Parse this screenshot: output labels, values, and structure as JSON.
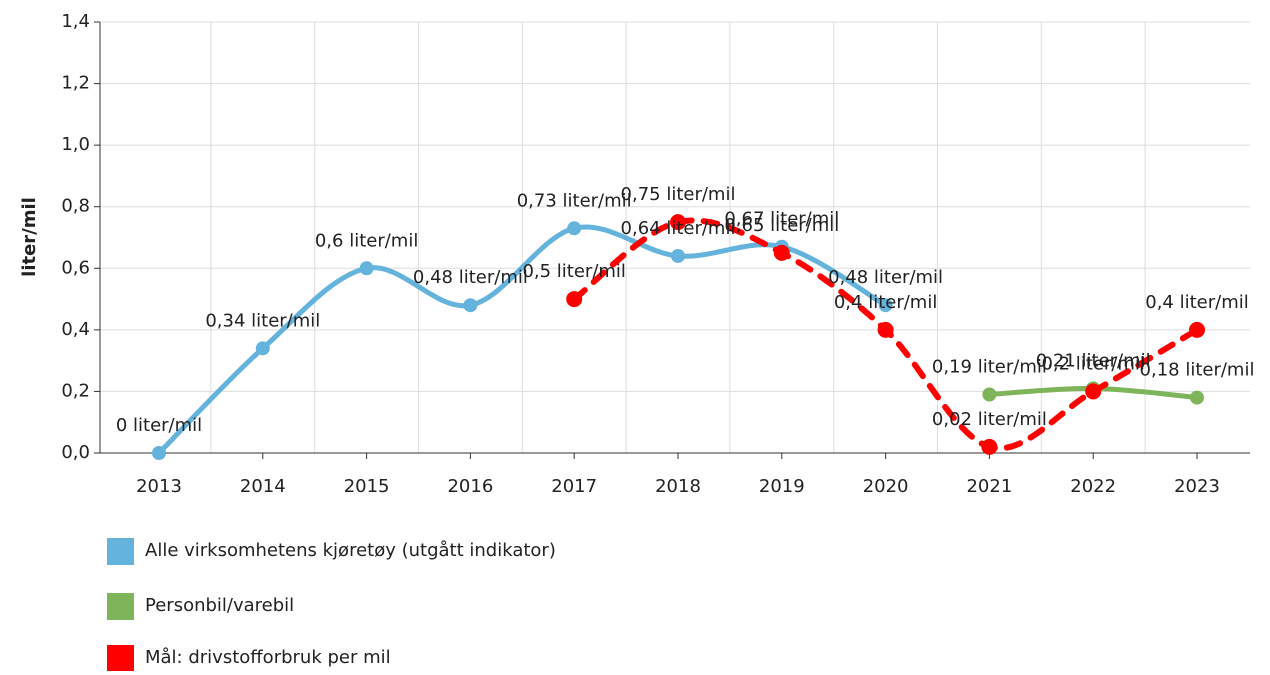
{
  "chart_data": {
    "type": "line",
    "y_label": "liter/mil",
    "categories": [
      "2013",
      "2014",
      "2015",
      "2016",
      "2017",
      "2018",
      "2019",
      "2020",
      "2021",
      "2022",
      "2023"
    ],
    "ylim": [
      0,
      1.4
    ],
    "yticks": [
      {
        "value": 0,
        "label": "0,0"
      },
      {
        "value": 0.2,
        "label": "0,2"
      },
      {
        "value": 0.4,
        "label": "0,4"
      },
      {
        "value": 0.6,
        "label": "0,6"
      },
      {
        "value": 0.8,
        "label": "0,8"
      },
      {
        "value": 1.0,
        "label": "1,0"
      },
      {
        "value": 1.2,
        "label": "1,2"
      },
      {
        "value": 1.4,
        "label": "1,4"
      }
    ],
    "grid": true,
    "series": [
      {
        "name": "Alle virksomhetens kjøretøy (utgått indikator)",
        "color": "#63b3dc",
        "dashed": false,
        "values": [
          0,
          0.34,
          0.6,
          0.48,
          0.73,
          0.64,
          0.67,
          0.48,
          null,
          null,
          null
        ],
        "value_labels": [
          "0 liter/mil",
          "0,34 liter/mil",
          "0,6 liter/mil",
          "0,48 liter/mil",
          "0,73 liter/mil",
          "0,64 liter/mil",
          "0,67 liter/mil",
          "0,48 liter/mil",
          null,
          null,
          null
        ]
      },
      {
        "name": "Personbil/varebil",
        "color": "#7fb55a",
        "dashed": false,
        "values": [
          null,
          null,
          null,
          null,
          null,
          null,
          null,
          null,
          0.19,
          0.21,
          0.18
        ],
        "value_labels": [
          null,
          null,
          null,
          null,
          null,
          null,
          null,
          null,
          "0,19 liter/mil",
          "0,21 liter/mil",
          "0,18 liter/mil"
        ]
      },
      {
        "name": "Mål: drivstofforbruk per mil",
        "color": "#ff0000",
        "dashed": true,
        "values": [
          null,
          null,
          null,
          null,
          0.5,
          0.75,
          0.65,
          0.4,
          0.02,
          0.2,
          0.4
        ],
        "value_labels": [
          null,
          null,
          null,
          null,
          "0,5 liter/mil",
          "0,75 liter/mil",
          "0,65 liter/mil",
          "0,4 liter/mil",
          "0,02 liter/mil",
          "0,2 liter/mil",
          "0,4 liter/mil"
        ]
      }
    ]
  }
}
